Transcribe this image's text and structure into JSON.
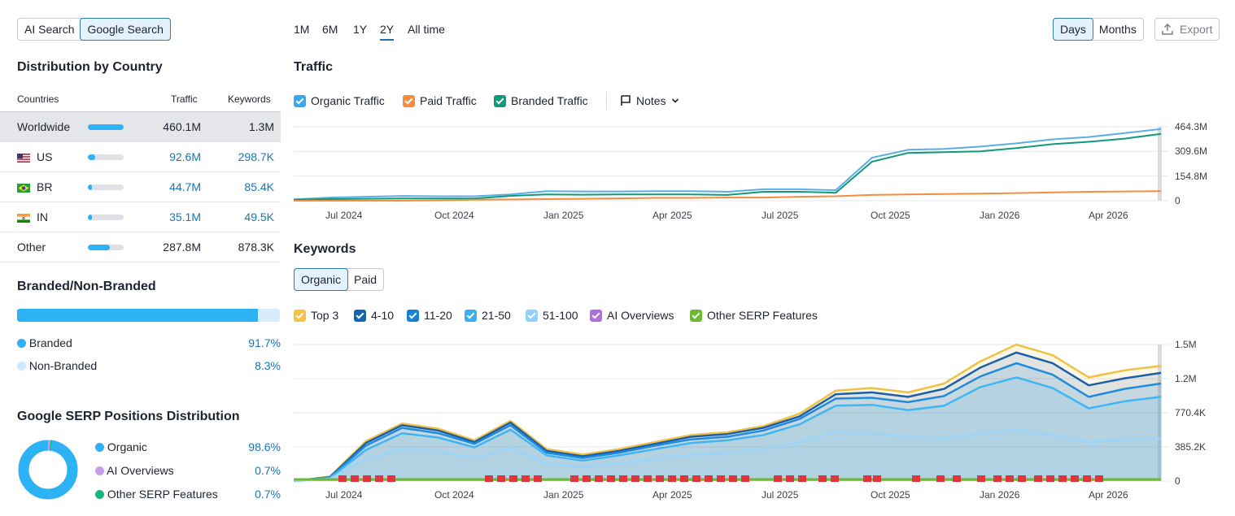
{
  "source_tabs": [
    "AI Search",
    "Google Search"
  ],
  "source_tabs_active": "Google Search",
  "periods": [
    "1M",
    "6M",
    "1Y",
    "2Y",
    "All time"
  ],
  "period_active": "2Y",
  "granularity": [
    "Days",
    "Months"
  ],
  "granularity_active": "Days",
  "export_label": "Export",
  "country": {
    "title": "Distribution by Country",
    "headers": [
      "Countries",
      "Traffic",
      "Keywords"
    ],
    "rows": [
      {
        "name": "Worldwide",
        "bar": 1.0,
        "traffic": "460.1M",
        "keywords": "1.3M",
        "linked": false,
        "selected": true,
        "flag": ""
      },
      {
        "name": "US",
        "bar": 0.2,
        "traffic": "92.6M",
        "keywords": "298.7K",
        "linked": true,
        "selected": false,
        "flag": "us-flag-icon"
      },
      {
        "name": "BR",
        "bar": 0.1,
        "traffic": "44.7M",
        "keywords": "85.4K",
        "linked": true,
        "selected": false,
        "flag": "br-flag-icon"
      },
      {
        "name": "IN",
        "bar": 0.08,
        "traffic": "35.1M",
        "keywords": "49.5K",
        "linked": true,
        "selected": false,
        "flag": "in-flag-icon"
      },
      {
        "name": "Other",
        "bar": 0.62,
        "traffic": "287.8M",
        "keywords": "878.3K",
        "linked": false,
        "selected": false,
        "flag": ""
      }
    ]
  },
  "branded": {
    "title": "Branded/Non-Branded",
    "branded_fraction": 0.917,
    "items": [
      {
        "label": "Branded",
        "value": "91.7%",
        "color": "#2db2f6"
      },
      {
        "label": "Non-Branded",
        "value": "8.3%",
        "color": "#cfe9fb"
      }
    ]
  },
  "serp": {
    "title": "Google SERP Positions Distribution",
    "items": [
      {
        "label": "Organic",
        "value": "98.6%",
        "color": "#2db2f6",
        "fraction": 0.986
      },
      {
        "label": "AI Overviews",
        "value": "0.7%",
        "color": "#c59ee8",
        "fraction": 0.007
      },
      {
        "label": "Other SERP Features",
        "value": "0.7%",
        "color": "#16b67f",
        "fraction": 0.007
      }
    ]
  },
  "traffic": {
    "title": "Traffic",
    "toggles": [
      {
        "label": "Organic Traffic",
        "color": "#38a9f0"
      },
      {
        "label": "Paid Traffic",
        "color": "#f58d3d"
      },
      {
        "label": "Branded Traffic",
        "color": "#10997a"
      }
    ],
    "notes_label": "Notes"
  },
  "keywords": {
    "title": "Keywords",
    "tabs": [
      "Organic",
      "Paid"
    ],
    "tab_active": "Organic",
    "toggles": [
      {
        "label": "Top 3",
        "color": "#f5c242"
      },
      {
        "label": "4-10",
        "color": "#1466b0"
      },
      {
        "label": "11-20",
        "color": "#1a80d0"
      },
      {
        "label": "21-50",
        "color": "#38b0f0"
      },
      {
        "label": "51-100",
        "color": "#92d2fa"
      },
      {
        "label": "AI Overviews",
        "color": "#b06ee0"
      },
      {
        "label": "Other SERP Features",
        "color": "#6dbb35"
      }
    ]
  },
  "chart_data": [
    {
      "type": "line",
      "title": "Traffic",
      "x_tick_labels": [
        "Jul 2024",
        "Oct 2024",
        "Jan 2025",
        "Apr 2025",
        "Jul 2025",
        "Oct 2025",
        "Jan 2026",
        "Apr 2026"
      ],
      "y_tick_labels": [
        "464.3M",
        "309.6M",
        "154.8M",
        "0"
      ],
      "ylim": [
        0,
        464300000
      ],
      "x": [
        "2024-05",
        "2024-06",
        "2024-07",
        "2024-08",
        "2024-09",
        "2024-10",
        "2024-11",
        "2024-12",
        "2025-01",
        "2025-02",
        "2025-03",
        "2025-04",
        "2025-05",
        "2025-06",
        "2025-07",
        "2025-08",
        "2025-09",
        "2025-10",
        "2025-11",
        "2025-12",
        "2026-01",
        "2026-02",
        "2026-03",
        "2026-04",
        "2026-05"
      ],
      "series": [
        {
          "name": "Organic Traffic",
          "color": "#5aaee8",
          "values": [
            8,
            20,
            25,
            30,
            28,
            28,
            40,
            60,
            58,
            58,
            60,
            60,
            56,
            72,
            72,
            66,
            270,
            320,
            325,
            340,
            360,
            385,
            400,
            425,
            450
          ]
        },
        {
          "name": "Branded Traffic",
          "color": "#10997a",
          "values": [
            6,
            10,
            12,
            14,
            14,
            14,
            30,
            40,
            38,
            40,
            40,
            40,
            36,
            56,
            56,
            50,
            245,
            300,
            305,
            310,
            330,
            355,
            370,
            390,
            420
          ]
        },
        {
          "name": "Paid Traffic",
          "color": "#f58d3d",
          "values": [
            0,
            0,
            0,
            0,
            2,
            6,
            8,
            10,
            12,
            15,
            18,
            18,
            20,
            20,
            25,
            28,
            36,
            40,
            42,
            45,
            48,
            52,
            56,
            58,
            60
          ]
        }
      ]
    },
    {
      "type": "area",
      "title": "Keywords",
      "x_tick_labels": [
        "Jul 2024",
        "Oct 2024",
        "Jan 2025",
        "Apr 2025",
        "Jul 2025",
        "Oct 2025",
        "Jan 2026",
        "Apr 2026"
      ],
      "y_tick_labels": [
        "1.5M",
        "1.2M",
        "770.4K",
        "385.2K",
        "0"
      ],
      "ylim": [
        0,
        1540000
      ],
      "x": [
        "2024-05",
        "2024-06",
        "2024-07",
        "2024-08",
        "2024-09",
        "2024-10",
        "2024-11",
        "2024-12",
        "2025-01",
        "2025-02",
        "2025-03",
        "2025-04",
        "2025-05",
        "2025-06",
        "2025-07",
        "2025-08",
        "2025-09",
        "2025-10",
        "2025-11",
        "2025-12",
        "2026-01",
        "2026-02",
        "2026-03",
        "2026-04",
        "2026-05"
      ],
      "series": [
        {
          "name": "Top 3",
          "color": "#f0c243",
          "values": [
            0,
            50,
            450,
            650,
            590,
            460,
            680,
            360,
            300,
            360,
            440,
            520,
            550,
            620,
            760,
            1020,
            1050,
            1000,
            1100,
            1350,
            1540,
            1420,
            1170,
            1250,
            1300
          ]
        },
        {
          "name": "4-10",
          "color": "#1c5fa8",
          "values": [
            0,
            45,
            430,
            630,
            570,
            440,
            660,
            340,
            280,
            340,
            420,
            500,
            530,
            600,
            730,
            980,
            1000,
            950,
            1040,
            1280,
            1450,
            1330,
            1080,
            1160,
            1220
          ]
        },
        {
          "name": "11-20",
          "color": "#1e8be0",
          "values": [
            0,
            40,
            400,
            600,
            540,
            420,
            630,
            320,
            260,
            320,
            400,
            470,
            500,
            570,
            700,
            930,
            940,
            890,
            960,
            1180,
            1330,
            1200,
            950,
            1040,
            1100
          ]
        },
        {
          "name": "21-50",
          "color": "#40b5f3",
          "values": [
            0,
            35,
            350,
            540,
            490,
            380,
            580,
            290,
            230,
            290,
            360,
            430,
            460,
            520,
            640,
            850,
            860,
            800,
            850,
            1060,
            1170,
            1050,
            820,
            900,
            950
          ]
        },
        {
          "name": "51-100",
          "color": "#9ad5fb",
          "values": [
            0,
            25,
            250,
            360,
            330,
            260,
            380,
            200,
            160,
            200,
            250,
            300,
            320,
            360,
            440,
            560,
            540,
            500,
            480,
            540,
            580,
            520,
            440,
            470,
            480
          ]
        }
      ]
    }
  ]
}
